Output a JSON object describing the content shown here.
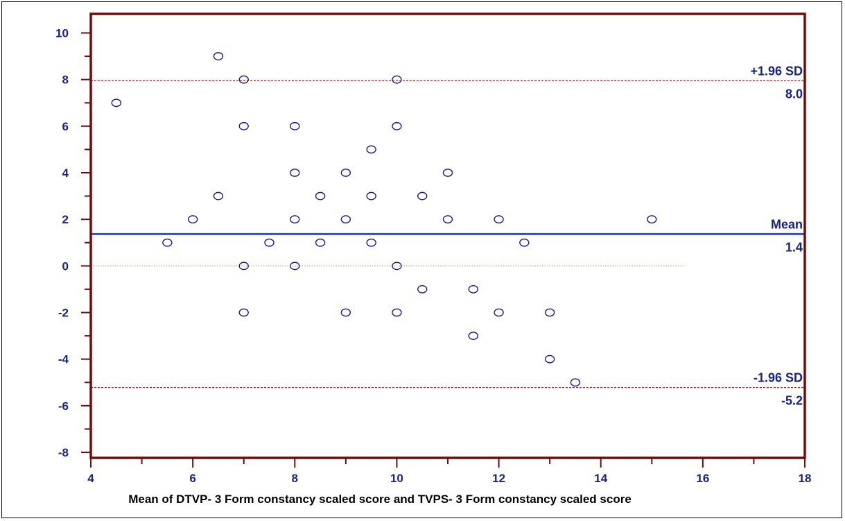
{
  "chart_data": {
    "type": "scatter",
    "title": "",
    "xlabel": "Mean of DTVP- 3 Form constancy scaled score and TVPS- 3 Form constancy scaled score",
    "ylabel": "",
    "xlim": [
      4,
      18
    ],
    "ylim": [
      -8.6,
      11
    ],
    "x_ticks": [
      4,
      6,
      8,
      10,
      12,
      14,
      16,
      18
    ],
    "y_ticks": [
      -8,
      -6,
      -4,
      -2,
      0,
      2,
      4,
      6,
      8,
      10
    ],
    "grid": false,
    "points": [
      {
        "x": 4.5,
        "y": 7
      },
      {
        "x": 5.5,
        "y": 1
      },
      {
        "x": 6,
        "y": 2
      },
      {
        "x": 6.5,
        "y": 9
      },
      {
        "x": 6.5,
        "y": 3
      },
      {
        "x": 7,
        "y": 8
      },
      {
        "x": 7,
        "y": 6
      },
      {
        "x": 7,
        "y": 0
      },
      {
        "x": 7,
        "y": -2
      },
      {
        "x": 7.5,
        "y": 1
      },
      {
        "x": 8,
        "y": 6
      },
      {
        "x": 8,
        "y": 4
      },
      {
        "x": 8,
        "y": 2
      },
      {
        "x": 8,
        "y": 0
      },
      {
        "x": 8.5,
        "y": 3
      },
      {
        "x": 8.5,
        "y": 1
      },
      {
        "x": 9,
        "y": 4
      },
      {
        "x": 9,
        "y": 2
      },
      {
        "x": 9,
        "y": -2
      },
      {
        "x": 9.5,
        "y": 5
      },
      {
        "x": 9.5,
        "y": 3
      },
      {
        "x": 9.5,
        "y": 1
      },
      {
        "x": 10,
        "y": 8
      },
      {
        "x": 10,
        "y": 6
      },
      {
        "x": 10,
        "y": 0
      },
      {
        "x": 10,
        "y": -2
      },
      {
        "x": 10.5,
        "y": 3
      },
      {
        "x": 10.5,
        "y": -1
      },
      {
        "x": 11,
        "y": 4
      },
      {
        "x": 11,
        "y": 2
      },
      {
        "x": 11.5,
        "y": -1
      },
      {
        "x": 11.5,
        "y": -3
      },
      {
        "x": 12,
        "y": 2
      },
      {
        "x": 12,
        "y": -2
      },
      {
        "x": 12.5,
        "y": 1
      },
      {
        "x": 13,
        "y": -2
      },
      {
        "x": 13,
        "y": -4
      },
      {
        "x": 13.5,
        "y": -5
      },
      {
        "x": 15,
        "y": 2
      }
    ],
    "reference_lines": [
      {
        "name": "+1.96 SD",
        "value_label": "8.0",
        "y": 7.95,
        "style": "dashed",
        "color": "#a52a2a"
      },
      {
        "name": "Mean",
        "value_label": "1.4",
        "y": 1.37,
        "style": "solid",
        "color": "#3f4fae"
      },
      {
        "name": "-1.96 SD",
        "value_label": "-5.2",
        "y": -5.22,
        "style": "dashed",
        "color": "#a52a2a"
      }
    ],
    "zero_line": {
      "y": 0,
      "x_end": 15.65,
      "style": "dotted",
      "color": "#f0a040"
    },
    "colors": {
      "axis": "#6b0e0e",
      "marker": "#1a1a8c",
      "tick_text": "#1a237e"
    }
  }
}
